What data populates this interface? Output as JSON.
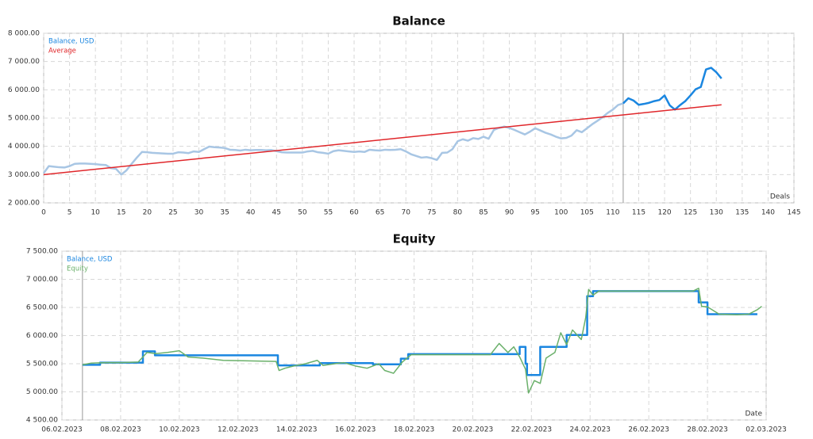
{
  "chart_data": [
    {
      "type": "line",
      "title": "Balance",
      "xlabel": "Deals",
      "xlim": [
        0,
        145
      ],
      "xticks": [
        0,
        5,
        10,
        15,
        20,
        25,
        30,
        35,
        40,
        45,
        50,
        55,
        60,
        65,
        70,
        75,
        80,
        85,
        90,
        95,
        100,
        105,
        110,
        115,
        120,
        125,
        130,
        135,
        140,
        145
      ],
      "ylim": [
        2000,
        8000
      ],
      "yticks": [
        {
          "value": 2000,
          "label": "2 000.00"
        },
        {
          "value": 3000,
          "label": "3 000.00"
        },
        {
          "value": 4000,
          "label": "4 000.00"
        },
        {
          "value": 5000,
          "label": "5 000.00"
        },
        {
          "value": 6000,
          "label": "6 000.00"
        },
        {
          "value": 7000,
          "label": "7 000.00"
        },
        {
          "value": 8000,
          "label": "8 000.00"
        }
      ],
      "grid": true,
      "legend": "upper left",
      "marker_x": 112,
      "series": [
        {
          "name": "Balance, USD",
          "color": "#1a86e0",
          "faded_color": "#a8c6e4",
          "values": [
            3050,
            3300,
            3280,
            3260,
            3250,
            3300,
            3380,
            3390,
            3390,
            3380,
            3370,
            3350,
            3340,
            3230,
            3200,
            3000,
            3150,
            3380,
            3600,
            3800,
            3790,
            3770,
            3760,
            3750,
            3740,
            3740,
            3790,
            3780,
            3760,
            3820,
            3800,
            3900,
            3990,
            3970,
            3960,
            3940,
            3880,
            3870,
            3850,
            3880,
            3860,
            3870,
            3870,
            3860,
            3870,
            3830,
            3790,
            3780,
            3780,
            3780,
            3780,
            3820,
            3840,
            3790,
            3770,
            3740,
            3830,
            3860,
            3840,
            3820,
            3800,
            3820,
            3800,
            3880,
            3860,
            3850,
            3880,
            3870,
            3880,
            3900,
            3820,
            3720,
            3660,
            3600,
            3620,
            3580,
            3520,
            3770,
            3780,
            3900,
            4180,
            4250,
            4200,
            4290,
            4260,
            4340,
            4270,
            4580,
            4650,
            4700,
            4650,
            4580,
            4500,
            4420,
            4520,
            4640,
            4560,
            4480,
            4420,
            4340,
            4280,
            4300,
            4380,
            4570,
            4500,
            4640,
            4780,
            4900,
            5030,
            5180,
            5300,
            5460,
            5520,
            5700,
            5620,
            5470,
            5500,
            5540,
            5600,
            5640,
            5800,
            5450,
            5300,
            5460,
            5600,
            5800,
            6020,
            6100,
            6720,
            6780,
            6620,
            6400
          ]
        },
        {
          "name": "Average",
          "color": "#e0262a",
          "x": [
            0,
            131
          ],
          "values": [
            3000,
            5470
          ]
        }
      ]
    },
    {
      "type": "line",
      "title": "Equity",
      "xlabel": "Date",
      "xlim": [
        0,
        24
      ],
      "xticks": [
        {
          "value": 0,
          "label": "06.02.2023"
        },
        {
          "value": 2,
          "label": "08.02.2023"
        },
        {
          "value": 4,
          "label": "10.02.2023"
        },
        {
          "value": 6,
          "label": "12.02.2023"
        },
        {
          "value": 8,
          "label": "14.02.2023"
        },
        {
          "value": 10,
          "label": "16.02.2023"
        },
        {
          "value": 12,
          "label": "18.02.2023"
        },
        {
          "value": 14,
          "label": "20.02.2023"
        },
        {
          "value": 16,
          "label": "22.02.2023"
        },
        {
          "value": 18,
          "label": "24.02.2023"
        },
        {
          "value": 20,
          "label": "26.02.2023"
        },
        {
          "value": 22,
          "label": "28.02.2023"
        },
        {
          "value": 24,
          "label": "02.03.2023"
        }
      ],
      "ylim": [
        4500,
        7500
      ],
      "yticks": [
        {
          "value": 4500,
          "label": "4 500.00"
        },
        {
          "value": 5000,
          "label": "5 000.00"
        },
        {
          "value": 5500,
          "label": "5 500.00"
        },
        {
          "value": 6000,
          "label": "6 000.00"
        },
        {
          "value": 6500,
          "label": "6 500.00"
        },
        {
          "value": 7000,
          "label": "7 000.00"
        },
        {
          "value": 7500,
          "label": "7 500.00"
        }
      ],
      "grid": true,
      "legend": "upper left",
      "marker_x": 0.7,
      "series": [
        {
          "name": "Balance, USD",
          "color": "#1a86e0",
          "step": true,
          "x": [
            0.7,
            1.3,
            2.76,
            3.17,
            7.36,
            8.79,
            10.6,
            11.55,
            11.8,
            15.6,
            15.8,
            15.85,
            16.3,
            17.2,
            17.9,
            18.1,
            21.7,
            22.0,
            23.7
          ],
          "values": [
            5480,
            5520,
            5720,
            5650,
            5470,
            5510,
            5490,
            5590,
            5670,
            5800,
            5500,
            5300,
            5800,
            6010,
            6700,
            6790,
            6590,
            6380,
            6380
          ]
        },
        {
          "name": "Equity",
          "color": "#6ab06a",
          "x": [
            0.7,
            1.0,
            1.5,
            2.0,
            2.6,
            2.9,
            3.2,
            3.6,
            4.0,
            4.3,
            4.8,
            5.5,
            6.5,
            7.3,
            7.4,
            7.6,
            7.9,
            8.3,
            8.7,
            8.9,
            9.3,
            9.6,
            10.0,
            10.4,
            10.8,
            11.0,
            11.3,
            11.6,
            11.9,
            13.5,
            14.6,
            14.9,
            15.2,
            15.4,
            15.6,
            15.8,
            15.9,
            16.1,
            16.3,
            16.5,
            16.8,
            17.0,
            17.2,
            17.4,
            17.7,
            17.85,
            17.95,
            18.1,
            18.3,
            21.0,
            21.5,
            21.7,
            21.8,
            22.0,
            22.4,
            23.0,
            23.4,
            23.7,
            23.85
          ],
          "values": [
            5480,
            5510,
            5520,
            5520,
            5530,
            5700,
            5680,
            5700,
            5730,
            5620,
            5600,
            5560,
            5550,
            5540,
            5380,
            5420,
            5460,
            5500,
            5560,
            5470,
            5500,
            5520,
            5460,
            5420,
            5500,
            5380,
            5330,
            5530,
            5660,
            5660,
            5660,
            5860,
            5700,
            5800,
            5620,
            5400,
            4980,
            5200,
            5150,
            5600,
            5700,
            6050,
            5840,
            6100,
            5930,
            6320,
            6820,
            6720,
            6790,
            6790,
            6790,
            6840,
            6520,
            6510,
            6380,
            6370,
            6380,
            6460,
            6520
          ]
        }
      ]
    }
  ]
}
